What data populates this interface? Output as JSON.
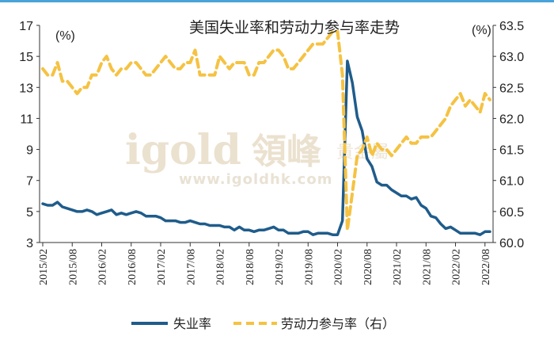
{
  "chart_data": {
    "type": "line",
    "title": "美国失业率和劳动力参与率走势",
    "y_left_unit": "(%)",
    "y_right_unit": "(%)",
    "ylim_left": [
      3,
      17
    ],
    "ylim_right": [
      60.0,
      63.5
    ],
    "yticks_left": [
      "17",
      "15",
      "13",
      "11",
      "9",
      "7",
      "5",
      "3"
    ],
    "yticks_right": [
      "63.5",
      "63.0",
      "62.5",
      "62.0",
      "61.5",
      "61.0",
      "60.5",
      "60.0"
    ],
    "x_tick_labels": [
      "2015/02",
      "2015/08",
      "2016/02",
      "2016/08",
      "2017/02",
      "2017/08",
      "2018/02",
      "2018/08",
      "2019/02",
      "2019/08",
      "2020/02",
      "2020/08",
      "2021/02",
      "2021/08",
      "2022/02",
      "2022/08"
    ],
    "x": [
      "2015/02",
      "2015/03",
      "2015/04",
      "2015/05",
      "2015/06",
      "2015/07",
      "2015/08",
      "2015/09",
      "2015/10",
      "2015/11",
      "2015/12",
      "2016/01",
      "2016/02",
      "2016/03",
      "2016/04",
      "2016/05",
      "2016/06",
      "2016/07",
      "2016/08",
      "2016/09",
      "2016/10",
      "2016/11",
      "2016/12",
      "2017/01",
      "2017/02",
      "2017/03",
      "2017/04",
      "2017/05",
      "2017/06",
      "2017/07",
      "2017/08",
      "2017/09",
      "2017/10",
      "2017/11",
      "2017/12",
      "2018/01",
      "2018/02",
      "2018/03",
      "2018/04",
      "2018/05",
      "2018/06",
      "2018/07",
      "2018/08",
      "2018/09",
      "2018/10",
      "2018/11",
      "2018/12",
      "2019/01",
      "2019/02",
      "2019/03",
      "2019/04",
      "2019/05",
      "2019/06",
      "2019/07",
      "2019/08",
      "2019/09",
      "2019/10",
      "2019/11",
      "2019/12",
      "2020/01",
      "2020/02",
      "2020/03",
      "2020/04",
      "2020/05",
      "2020/06",
      "2020/07",
      "2020/08",
      "2020/09",
      "2020/10",
      "2020/11",
      "2020/12",
      "2021/01",
      "2021/02",
      "2021/03",
      "2021/04",
      "2021/05",
      "2021/06",
      "2021/07",
      "2021/08",
      "2021/09",
      "2021/10",
      "2021/11",
      "2021/12",
      "2022/01",
      "2022/02",
      "2022/03",
      "2022/04",
      "2022/05",
      "2022/06",
      "2022/07",
      "2022/08",
      "2022/09"
    ],
    "series": [
      {
        "name": "失业率",
        "axis": "left",
        "color": "#1f5c8b",
        "values": [
          5.5,
          5.4,
          5.4,
          5.6,
          5.3,
          5.2,
          5.1,
          5.0,
          5.0,
          5.1,
          5.0,
          4.8,
          4.9,
          5.0,
          5.1,
          4.8,
          4.9,
          4.8,
          4.9,
          5.0,
          4.9,
          4.7,
          4.7,
          4.7,
          4.6,
          4.4,
          4.4,
          4.4,
          4.3,
          4.3,
          4.4,
          4.3,
          4.2,
          4.2,
          4.1,
          4.1,
          4.1,
          4.0,
          4.0,
          3.8,
          4.0,
          3.8,
          3.8,
          3.7,
          3.8,
          3.8,
          3.9,
          4.0,
          3.8,
          3.8,
          3.6,
          3.6,
          3.6,
          3.7,
          3.7,
          3.5,
          3.6,
          3.6,
          3.6,
          3.5,
          3.5,
          4.4,
          14.7,
          13.3,
          11.1,
          10.2,
          8.4,
          7.9,
          6.9,
          6.7,
          6.7,
          6.4,
          6.2,
          6.0,
          6.0,
          5.8,
          5.9,
          5.4,
          5.2,
          4.7,
          4.6,
          4.2,
          3.9,
          4.0,
          3.8,
          3.6,
          3.6,
          3.6,
          3.6,
          3.5,
          3.7,
          3.7
        ]
      },
      {
        "name": "劳动力参与率（右）",
        "axis": "right",
        "color": "#f5c242",
        "values": [
          62.8,
          62.7,
          62.7,
          62.9,
          62.6,
          62.6,
          62.5,
          62.4,
          62.5,
          62.5,
          62.7,
          62.7,
          62.9,
          63.0,
          62.8,
          62.7,
          62.8,
          62.8,
          62.9,
          62.9,
          62.8,
          62.7,
          62.7,
          62.8,
          62.9,
          63.0,
          62.9,
          62.8,
          62.8,
          62.9,
          62.9,
          63.1,
          62.7,
          62.7,
          62.7,
          62.7,
          63.0,
          62.9,
          62.8,
          62.9,
          62.9,
          62.9,
          62.7,
          62.7,
          62.9,
          62.9,
          63.0,
          63.1,
          63.1,
          63.0,
          62.8,
          62.8,
          62.9,
          63.0,
          63.1,
          63.2,
          63.2,
          63.2,
          63.3,
          63.4,
          63.4,
          62.7,
          60.2,
          60.8,
          61.4,
          61.5,
          61.7,
          61.4,
          61.6,
          61.5,
          61.5,
          61.4,
          61.5,
          61.6,
          61.7,
          61.6,
          61.6,
          61.7,
          61.7,
          61.7,
          61.8,
          61.9,
          62.0,
          62.2,
          62.3,
          62.4,
          62.2,
          62.3,
          62.2,
          62.1,
          62.4,
          62.3
        ]
      }
    ],
    "legend": {
      "position": "bottom-center",
      "items": [
        "失业率",
        "劳动力参与率（右）"
      ]
    },
    "grid": false
  },
  "watermark": {
    "brand": "igold",
    "chinese": "領峰",
    "chinese_small": "貴金屬",
    "url": "www.igoldhk.com"
  }
}
